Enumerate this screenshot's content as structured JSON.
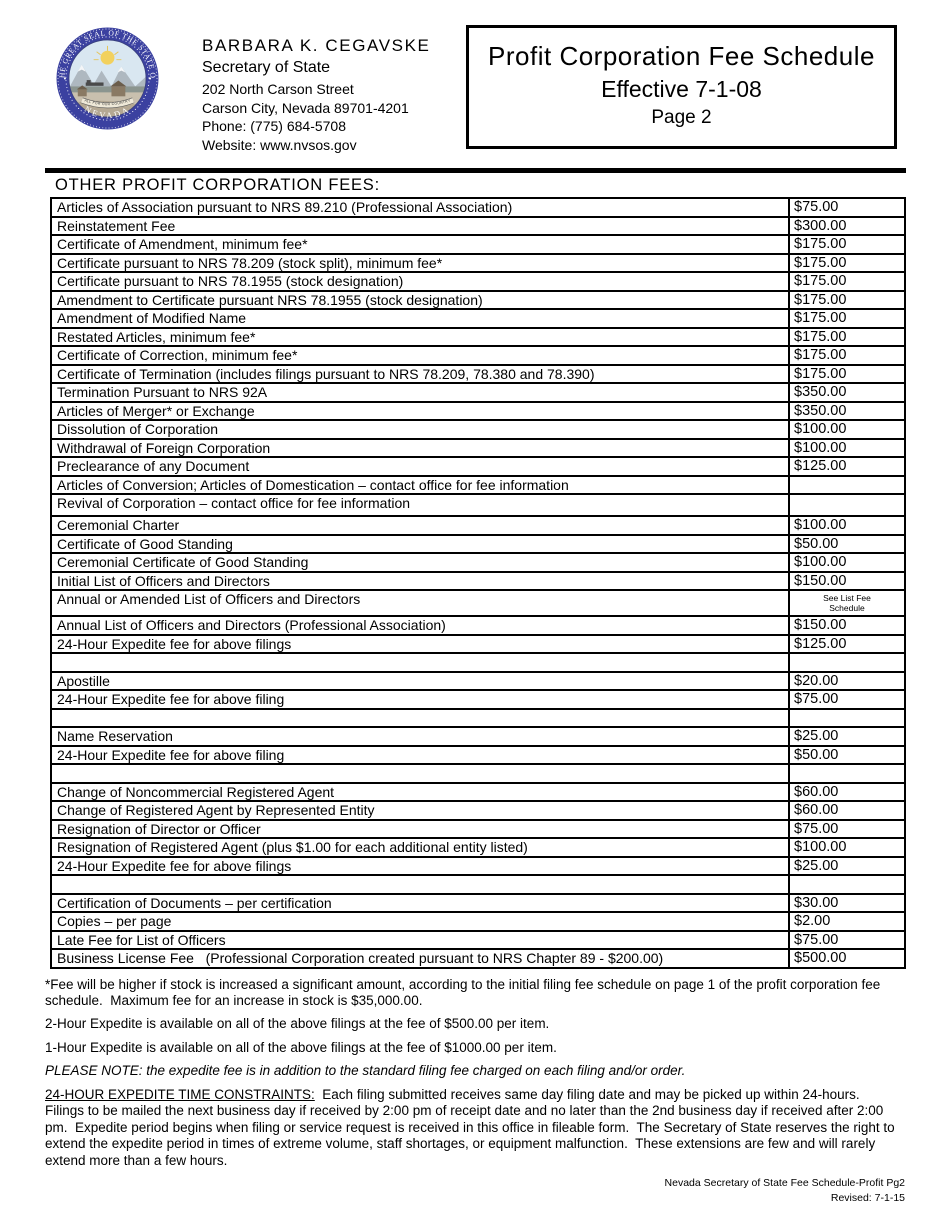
{
  "header": {
    "name": "BARBARA K. CEGAVSKE",
    "title": "Secretary of State",
    "address1": "202 North Carson Street",
    "address2": "Carson City, Nevada 89701-4201",
    "phone": "Phone: (775) 684-5708",
    "website": "Website: www.nvsos.gov",
    "seal": {
      "top_text": "THE GREAT SEAL OF THE STATE OF",
      "bottom_text": "NEVADA",
      "banner_text": "ALL FOR OUR COUNTRY"
    }
  },
  "title_box": {
    "line1": "Profit Corporation Fee Schedule",
    "line2": "Effective 7-1-08",
    "line3": "Page 2"
  },
  "section_heading": "OTHER PROFIT CORPORATION FEES:",
  "colors": {
    "seal_ring": "#3b41a0",
    "seal_sky": "#d9e7f1",
    "seal_sun": "#f2d15e",
    "ink": "#000000"
  },
  "fee_table": {
    "rows": [
      {
        "label": "Articles of Association pursuant to NRS 89.210 (Professional Association)",
        "fee": "$75.00"
      },
      {
        "label": "Reinstatement Fee",
        "fee": "$300.00"
      },
      {
        "label": "Certificate of Amendment, minimum fee*",
        "fee": "$175.00"
      },
      {
        "label": "Certificate pursuant to NRS 78.209 (stock split), minimum fee*",
        "fee": "$175.00"
      },
      {
        "label": "Certificate pursuant to NRS 78.1955 (stock designation)",
        "fee": "$175.00"
      },
      {
        "label": "Amendment to Certificate pursuant NRS 78.1955 (stock designation)",
        "fee": "$175.00"
      },
      {
        "label": "Amendment of Modified Name",
        "fee": "$175.00"
      },
      {
        "label": "Restated Articles, minimum fee*",
        "fee": "$175.00"
      },
      {
        "label": "Certificate of Correction, minimum fee*",
        "fee": "$175.00"
      },
      {
        "label": "Certificate of Termination (includes filings pursuant to NRS 78.209, 78.380 and 78.390)",
        "fee": "$175.00"
      },
      {
        "label": "Termination Pursuant to NRS 92A",
        "fee": "$350.00"
      },
      {
        "label": "Articles of Merger* or Exchange",
        "fee": "$350.00"
      },
      {
        "label": "Dissolution of Corporation",
        "fee": "$100.00"
      },
      {
        "label": "Withdrawal of Foreign Corporation",
        "fee": "$100.00"
      },
      {
        "label": "Preclearance of any Document",
        "fee": "$125.00"
      },
      {
        "label": "Articles of Conversion; Articles of Domestication – contact office for fee information",
        "fee": ""
      },
      {
        "label": "Revival of Corporation – contact office for fee information",
        "fee": "",
        "tall": true
      },
      {
        "label": "Ceremonial Charter",
        "fee": "$100.00"
      },
      {
        "label": "Certificate of Good Standing",
        "fee": "$50.00"
      },
      {
        "label": "Ceremonial Certificate of Good Standing",
        "fee": "$100.00"
      },
      {
        "label": "Initial List of Officers and Directors",
        "fee": "$150.00"
      },
      {
        "label": "Annual or Amended List of Officers and Directors",
        "fee": "See List Fee Schedule",
        "small": true,
        "xtall": true
      },
      {
        "label": "Annual List of Officers and Directors (Professional Association)",
        "fee": "$150.00"
      },
      {
        "label": "24-Hour Expedite fee for above filings",
        "fee": "$125.00"
      },
      {
        "label": "",
        "fee": "",
        "spacer": true
      },
      {
        "label": "Apostille",
        "fee": "$20.00"
      },
      {
        "label": "24-Hour Expedite fee for above filing",
        "fee": "$75.00"
      },
      {
        "label": "",
        "fee": "",
        "spacer": true
      },
      {
        "label": "Name Reservation",
        "fee": "$25.00"
      },
      {
        "label": "24-Hour Expedite fee for above filing",
        "fee": "$50.00"
      },
      {
        "label": "",
        "fee": "",
        "spacer": true
      },
      {
        "label": "Change of Noncommercial Registered Agent",
        "fee": "$60.00"
      },
      {
        "label": "Change of Registered Agent by Represented Entity",
        "fee": "$60.00"
      },
      {
        "label": "Resignation of Director or Officer",
        "fee": "$75.00"
      },
      {
        "label": "Resignation of Registered Agent (plus $1.00 for each additional entity listed)",
        "fee": "$100.00"
      },
      {
        "label": "24-Hour Expedite fee for above filings",
        "fee": "$25.00"
      },
      {
        "label": "",
        "fee": "",
        "spacer": true
      },
      {
        "label": "Certification of Documents – per certification",
        "fee": "$30.00"
      },
      {
        "label": "Copies – per page",
        "fee": "$2.00"
      },
      {
        "label": "Late Fee for List of Officers",
        "fee": "$75.00"
      },
      {
        "label": "Business License Fee   (Professional Corporation created pursuant to NRS Chapter 89 - $200.00)",
        "fee": "$500.00"
      }
    ]
  },
  "footnotes": [
    {
      "text": "*Fee will be higher if stock is increased a significant amount, according to the initial filing fee schedule on page 1 of the profit corporation fee schedule.  Maximum fee for an increase in stock is $35,000.00."
    },
    {
      "text": "2-Hour Expedite is available on all of the above filings at the fee of $500.00 per item."
    },
    {
      "text": "1-Hour Expedite is available on all of the above filings at the fee of $1000.00 per item."
    },
    {
      "text": "PLEASE NOTE: the expedite fee is in addition to the standard filing fee charged on each filing and/or order.",
      "style": "italic"
    },
    {
      "lead": "24-HOUR EXPEDITE TIME CONSTRAINTS:",
      "text": "  Each filing submitted receives same day filing date and may be picked up within 24-hours.  Filings to be mailed the next business day if received by 2:00 pm of receipt date and no later than the 2nd business day if received after 2:00 pm.  Expedite period begins when filing or service request is received in this office in fileable form.  The Secretary of State reserves the right to extend the expedite period in times of extreme volume, staff shortages, or equipment malfunction.  These extensions are few and will rarely extend more than a few hours."
    }
  ],
  "footer": {
    "line1": "Nevada Secretary of State Fee Schedule-Profit Pg2",
    "line2": "Revised: 7-1-15"
  }
}
